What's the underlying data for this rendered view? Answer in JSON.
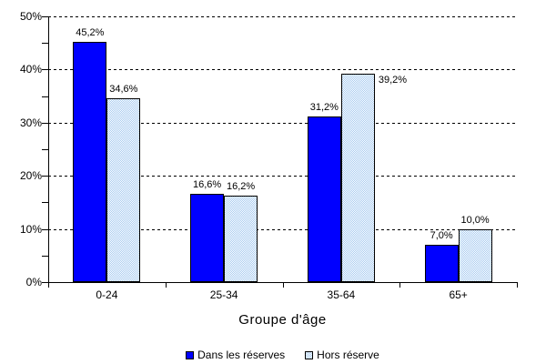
{
  "chart_data": {
    "type": "bar",
    "title": "",
    "xlabel": "Groupe d'âge",
    "ylabel": "",
    "categories": [
      "0-24",
      "25-34",
      "35-64",
      "65+"
    ],
    "series": [
      {
        "name": "Dans les réserves",
        "color": "#0000ff",
        "fill": "solid",
        "values": [
          45.2,
          16.6,
          31.2,
          7.0
        ],
        "value_labels": [
          "45,2%",
          "16,6%",
          "31,2%",
          "7,0%"
        ],
        "label_positions": [
          "above",
          "above",
          "above",
          "above"
        ]
      },
      {
        "name": "Hors réserve",
        "color": "#a6caf0",
        "fill": "checker",
        "values": [
          34.6,
          16.2,
          39.2,
          10.0
        ],
        "value_labels": [
          "34,6%",
          "16,2%",
          "39,2%",
          "10,0%"
        ],
        "label_positions": [
          "above",
          "above",
          "right",
          "above"
        ]
      }
    ],
    "ylim": [
      0,
      50
    ],
    "ytick_step": 10,
    "ytick_minor_step": 5,
    "ytick_labels": [
      "0%",
      "10%",
      "20%",
      "30%",
      "40%",
      "50%"
    ],
    "grid": "horizontal-dashed",
    "gridline_color": "#000000",
    "bar_border_color": "#000000",
    "legend_position": "bottom"
  }
}
